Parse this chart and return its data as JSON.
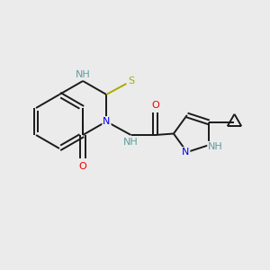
{
  "background_color": "#ebebeb",
  "bond_color": "#1a1a1a",
  "atom_colors": {
    "N": "#0000ee",
    "O": "#ee0000",
    "S": "#aaaa00",
    "NH": "#5f9ea0",
    "C": "#1a1a1a"
  },
  "lw": 1.4,
  "fs": 8.0
}
